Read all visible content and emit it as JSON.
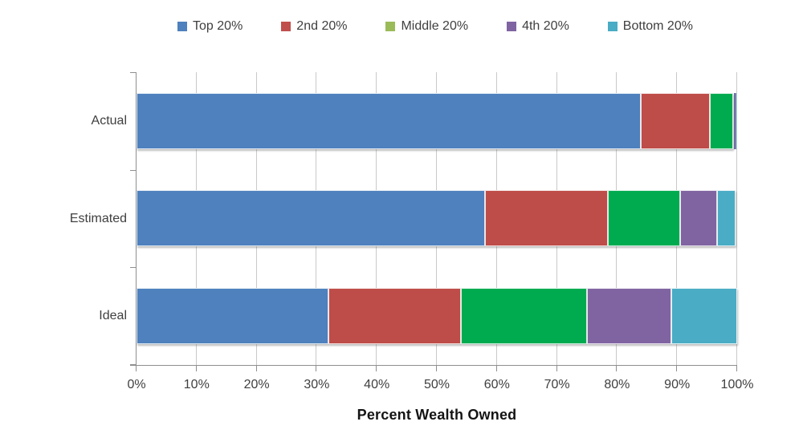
{
  "chart_data": {
    "type": "bar",
    "orientation": "horizontal",
    "stacked": true,
    "title": "",
    "xlabel": "Percent Wealth Owned",
    "ylabel": "",
    "xlim": [
      0,
      100
    ],
    "x_ticks": [
      "0%",
      "10%",
      "20%",
      "30%",
      "40%",
      "50%",
      "60%",
      "70%",
      "80%",
      "90%",
      "100%"
    ],
    "grid": "vertical",
    "legend_position": "top",
    "categories": [
      "Actual",
      "Estimated",
      "Ideal"
    ],
    "series": [
      {
        "name": "Top 20%",
        "legend_color": "#4e81bd",
        "bar_color": "#4e81bd",
        "values": [
          84.0,
          58.0,
          32.0
        ]
      },
      {
        "name": "2nd 20%",
        "legend_color": "#c0504d",
        "bar_color": "#be4c48",
        "values": [
          11.4,
          20.5,
          22.0
        ]
      },
      {
        "name": "Middle 20%",
        "legend_color": "#9bbb59",
        "bar_color": "#00ab50",
        "values": [
          4.0,
          12.0,
          21.0
        ]
      },
      {
        "name": "4th 20%",
        "legend_color": "#8064a2",
        "bar_color": "#8064a2",
        "values": [
          0.3,
          6.2,
          14.0
        ]
      },
      {
        "name": "Bottom 20%",
        "legend_color": "#4aacc5",
        "bar_color": "#4aacc5",
        "values": [
          0.1,
          3.0,
          11.0
        ]
      }
    ]
  },
  "colors": {
    "text": "#3f3f3f",
    "axis_line": "#8f8f8f",
    "gridline": "#c9c9c9",
    "axis_title_text": "#141414",
    "background": "#ffffff"
  }
}
